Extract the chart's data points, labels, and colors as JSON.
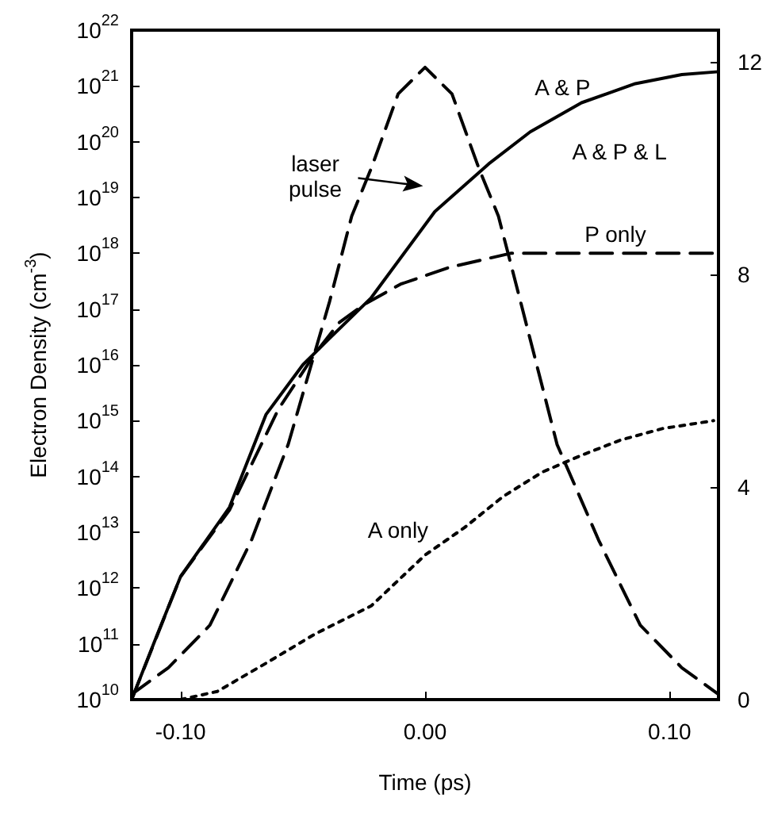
{
  "chart_data": {
    "type": "line",
    "xlabel": "Time (ps)",
    "ylabel": "Electron Density (cm$^{-3}$)",
    "log": "y",
    "grid": false,
    "legend": false,
    "marker": "none",
    "xlim": [
      -0.12,
      0.12
    ],
    "xticks": [
      {
        "value": -0.1,
        "label": "-0.10"
      },
      {
        "value": 0,
        "label": "0.00"
      },
      {
        "value": 0.1,
        "label": "0.10"
      }
    ],
    "ylim": [
      10000000000.0,
      1e+22
    ],
    "yticks": [
      {
        "value": 10000000000.0,
        "label": "10$^{10}$"
      },
      {
        "value": 100000000000.0,
        "label": "10$^{11}$"
      },
      {
        "value": 1000000000000.0,
        "label": "10$^{12}$"
      },
      {
        "value": 10000000000000.0,
        "label": "10$^{13}$"
      },
      {
        "value": 100000000000000.0,
        "label": "10$^{14}$"
      },
      {
        "value": 1000000000000000.0,
        "label": "10$^{15}$"
      },
      {
        "value": 1e+16,
        "label": "10$^{16}$"
      },
      {
        "value": 1e+17,
        "label": "10$^{17}$"
      },
      {
        "value": 1e+18,
        "label": "10$^{18}$"
      },
      {
        "value": 1e+19,
        "label": "10$^{19}$"
      },
      {
        "value": 1e+20,
        "label": "10$^{20}$"
      },
      {
        "value": 1e+21,
        "label": "10$^{21}$"
      },
      {
        "value": 1e+22,
        "label": "10$^{22}$"
      }
    ],
    "y2lim": [
      0,
      12.6
    ],
    "y2ticks": [
      0,
      4,
      8,
      12
    ],
    "series": [
      {
        "name": "A & P",
        "color": "#000000",
        "line_style": "solid",
        "x": [
          -0.12,
          -0.11,
          -0.1,
          -0.08,
          -0.065,
          -0.05,
          -0.039,
          -0.022,
          0.004,
          0.026,
          0.043,
          0.064,
          0.086,
          0.105,
          0.12
        ],
        "values": [
          10000000000.0,
          130000000000.0,
          1600000000000.0,
          28000000000000.0,
          1300000000000000.0,
          1e+16,
          3e+16,
          1.6e+17,
          5.6e+18,
          4e+19,
          1.5e+20,
          5e+20,
          1.1e+21,
          1.6e+21,
          1.8e+21
        ]
      },
      {
        "name": "P only",
        "color": "#000000",
        "line_style": "dashed",
        "x": [
          -0.12,
          -0.1,
          -0.08,
          -0.06,
          -0.045,
          -0.035,
          -0.025,
          -0.01,
          0.01,
          0.035,
          0.06,
          0.12
        ],
        "values": [
          10000000000.0,
          1600000000000.0,
          25000000000000.0,
          1600000000000000.0,
          1.6e+16,
          5.8e+16,
          1.2e+17,
          2.8e+17,
          5.6e+17,
          1e+18,
          1e+18,
          1e+18
        ]
      },
      {
        "name": "A only",
        "color": "#000000",
        "line_style": "dotted",
        "x": [
          -0.1,
          -0.085,
          -0.065,
          -0.045,
          -0.022,
          0,
          0.016,
          0.032,
          0.048,
          0.064,
          0.08,
          0.097,
          0.118
        ],
        "values": [
          10000000000.0,
          14000000000.0,
          45000000000.0,
          150000000000.0,
          480000000000.0,
          3900000000000.0,
          12000000000000.0,
          44000000000000.0,
          120000000000000.0,
          240000000000000.0,
          450000000000000.0,
          720000000000000.0,
          1000000000000000.0
        ]
      },
      {
        "color": "#000000",
        "line_style": "dashed",
        "axis": "y2",
        "x": [
          -0.12,
          -0.105,
          -0.088,
          -0.071,
          -0.056,
          -0.039,
          -0.03,
          -0.022,
          -0.011,
          0,
          0.011,
          0.022,
          0.03,
          0.039,
          0.054,
          0.071,
          0.088,
          0.105,
          0.12
        ],
        "values": [
          0.1,
          0.6,
          1.4,
          3,
          4.8,
          7.5,
          9.1,
          10,
          11.4,
          11.9,
          11.4,
          10,
          9.1,
          7.5,
          4.8,
          3,
          1.4,
          0.6,
          0.1
        ]
      }
    ],
    "annotations": [
      "laser pulse",
      "A & P & L"
    ]
  }
}
